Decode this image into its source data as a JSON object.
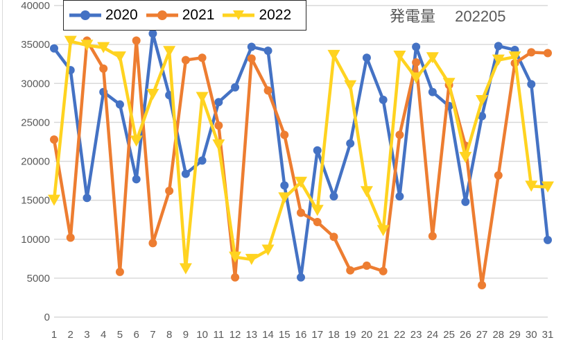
{
  "title": "発電量　 202205",
  "legend": [
    {
      "label": "2020",
      "color": "#4472C4",
      "marker": "circle"
    },
    {
      "label": "2021",
      "color": "#ED7D31",
      "marker": "circle"
    },
    {
      "label": "2022",
      "color": "#FFD320",
      "marker": "triangle-down"
    }
  ],
  "chart_data": {
    "type": "line",
    "title": "発電量 202205",
    "xlabel": "",
    "ylabel": "",
    "ylim": [
      0,
      40000
    ],
    "yticks": [
      0,
      5000,
      10000,
      15000,
      20000,
      25000,
      30000,
      35000,
      40000
    ],
    "grid": true,
    "legend_position": "top-left",
    "categories": [
      "1",
      "2",
      "3",
      "4",
      "5",
      "6",
      "7",
      "8",
      "9",
      "10",
      "11",
      "12",
      "13",
      "14",
      "15",
      "16",
      "17",
      "18",
      "19",
      "20",
      "21",
      "22",
      "23",
      "24",
      "25",
      "26",
      "27",
      "28",
      "29",
      "30",
      "31"
    ],
    "series": [
      {
        "name": "2020",
        "color": "#4472C4",
        "values": [
          34500,
          31700,
          15300,
          28900,
          27300,
          17700,
          36400,
          28500,
          18400,
          20100,
          27600,
          29500,
          34700,
          34200,
          16900,
          5100,
          21400,
          15500,
          22300,
          33300,
          27900,
          15500,
          34700,
          28900,
          27100,
          14800,
          25800,
          34800,
          34300,
          29900,
          9900
        ]
      },
      {
        "name": "2021",
        "color": "#ED7D31",
        "values": [
          22800,
          10200,
          35500,
          31900,
          5800,
          35500,
          9500,
          16200,
          33000,
          33300,
          24600,
          5100,
          33200,
          29100,
          23400,
          13400,
          12200,
          10300,
          6000,
          6600,
          5900,
          23400,
          32700,
          10400,
          29800,
          22000,
          4100,
          18200,
          32600,
          34000,
          33900
        ]
      },
      {
        "name": "2022",
        "color": "#FFD320",
        "values": [
          15000,
          35400,
          34900,
          34600,
          33400,
          22600,
          28600,
          34100,
          6200,
          28200,
          22100,
          7700,
          7400,
          8600,
          15300,
          17300,
          13700,
          33600,
          29700,
          16100,
          11100,
          33500,
          30700,
          33300,
          30000,
          20500,
          27800,
          33000,
          33400,
          16800,
          16700
        ]
      }
    ]
  }
}
